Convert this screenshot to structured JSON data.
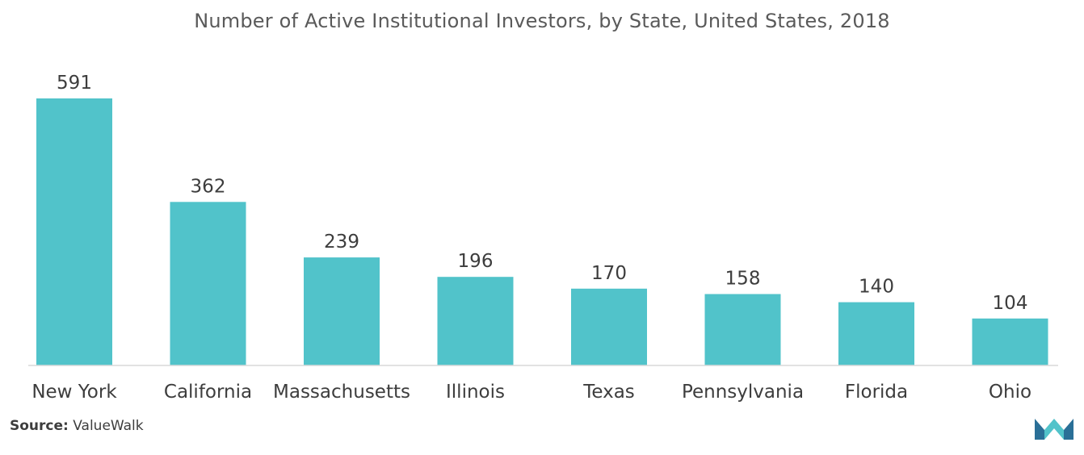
{
  "chart_data": {
    "type": "bar",
    "title": "Number of Active Institutional Investors, by State, United States, 2018",
    "categories": [
      "New York",
      "California",
      "Massachusetts",
      "Illinois",
      "Texas",
      "Pennsylvania",
      "Florida",
      "Ohio"
    ],
    "values": [
      591,
      362,
      239,
      196,
      170,
      158,
      140,
      104
    ],
    "xlabel": "",
    "ylabel": "",
    "ylim": [
      0,
      600
    ],
    "grid": false,
    "legend": "none",
    "bar_color": "#51c3ca",
    "axis_color": "#d9d9d9"
  },
  "source": {
    "label": "Source:",
    "value": "ValueWalk"
  },
  "logo": {
    "icon": "mordor-intelligence-logo-icon",
    "colors": [
      "#2a6f97",
      "#51c3ca"
    ]
  }
}
